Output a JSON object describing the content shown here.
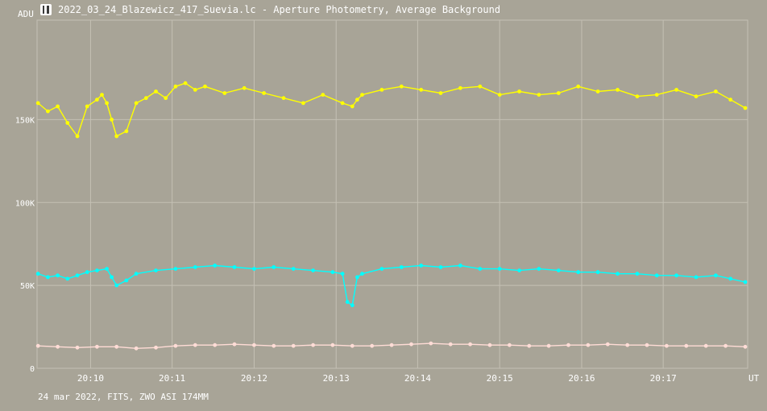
{
  "window": {
    "title": "2022_03_24_Blazewicz_417_Suevia.lc - Aperture Photometry, Average Background"
  },
  "footer": {
    "text": "24 mar 2022, FITS, ZWO ASI 174MM"
  },
  "colors": {
    "background": "#a8a497",
    "grid": "#c4c0b4",
    "text": "#ffffff",
    "series_target": "#ffff00",
    "series_comparison": "#00ffff",
    "series_background": "#ffdcd6"
  },
  "chart_data": {
    "type": "line",
    "xlabel": "UT",
    "ylabel": "ADU",
    "x_unit": "UT time (hours)",
    "xlim": [
      20.1558,
      20.3005
    ],
    "ylim": [
      0,
      210000
    ],
    "y_ticks": [
      0,
      50000,
      100000,
      150000
    ],
    "y_tick_labels": [
      "0",
      "50K",
      "100K",
      "150K"
    ],
    "x_ticks": [
      20.1667,
      20.1833,
      20.2,
      20.2167,
      20.2333,
      20.25,
      20.2667,
      20.2833
    ],
    "x_tick_labels": [
      "20:10",
      "20:11",
      "20:12",
      "20:13",
      "20:14",
      "20:15",
      "20:16",
      "20:17"
    ],
    "grid": true,
    "series": [
      {
        "key": "target",
        "color": "#ffff00",
        "x": [
          20.156,
          20.158,
          20.16,
          20.162,
          20.164,
          20.166,
          20.168,
          20.169,
          20.17,
          20.171,
          20.172,
          20.174,
          20.176,
          20.178,
          20.18,
          20.182,
          20.184,
          20.186,
          20.188,
          20.19,
          20.194,
          20.198,
          20.202,
          20.206,
          20.21,
          20.214,
          20.218,
          20.22,
          20.221,
          20.222,
          20.226,
          20.23,
          20.234,
          20.238,
          20.242,
          20.246,
          20.25,
          20.254,
          20.258,
          20.262,
          20.266,
          20.27,
          20.274,
          20.278,
          20.282,
          20.286,
          20.29,
          20.294,
          20.297,
          20.3
        ],
        "values": [
          160000,
          155000,
          158000,
          148000,
          140000,
          158000,
          162000,
          165000,
          160000,
          150000,
          140000,
          143000,
          160000,
          163000,
          167000,
          163000,
          170000,
          172000,
          168000,
          170000,
          166000,
          169000,
          166000,
          163000,
          160000,
          165000,
          160000,
          158000,
          162000,
          165000,
          168000,
          170000,
          168000,
          166000,
          169000,
          170000,
          165000,
          167000,
          165000,
          166000,
          170000,
          167000,
          168000,
          164000,
          165000,
          168000,
          164000,
          167000,
          162000,
          157000
        ]
      },
      {
        "key": "comparison",
        "color": "#00ffff",
        "x": [
          20.156,
          20.158,
          20.16,
          20.162,
          20.164,
          20.166,
          20.168,
          20.17,
          20.171,
          20.172,
          20.174,
          20.176,
          20.18,
          20.184,
          20.188,
          20.192,
          20.196,
          20.2,
          20.204,
          20.208,
          20.212,
          20.216,
          20.218,
          20.219,
          20.22,
          20.221,
          20.222,
          20.226,
          20.23,
          20.234,
          20.238,
          20.242,
          20.246,
          20.25,
          20.254,
          20.258,
          20.262,
          20.266,
          20.27,
          20.274,
          20.278,
          20.282,
          20.286,
          20.29,
          20.294,
          20.297,
          20.3
        ],
        "values": [
          57000,
          55000,
          56000,
          54000,
          56000,
          58000,
          59000,
          60000,
          55000,
          50000,
          53000,
          57000,
          59000,
          60000,
          61000,
          62000,
          61000,
          60000,
          61000,
          60000,
          59000,
          58000,
          57000,
          40000,
          38000,
          55000,
          57000,
          60000,
          61000,
          62000,
          61000,
          62000,
          60000,
          60000,
          59000,
          60000,
          59000,
          58000,
          58000,
          57000,
          57000,
          56000,
          56000,
          55000,
          56000,
          54000,
          52000
        ]
      },
      {
        "key": "background",
        "color": "#ffdcd6",
        "x": [
          20.156,
          20.16,
          20.164,
          20.168,
          20.172,
          20.176,
          20.18,
          20.184,
          20.188,
          20.192,
          20.196,
          20.2,
          20.204,
          20.208,
          20.212,
          20.216,
          20.22,
          20.224,
          20.228,
          20.232,
          20.236,
          20.24,
          20.244,
          20.248,
          20.252,
          20.256,
          20.26,
          20.264,
          20.268,
          20.272,
          20.276,
          20.28,
          20.284,
          20.288,
          20.292,
          20.296,
          20.3
        ],
        "values": [
          13500,
          13000,
          12500,
          13000,
          13000,
          12000,
          12500,
          13500,
          14000,
          14000,
          14500,
          14000,
          13500,
          13500,
          14000,
          14000,
          13500,
          13500,
          14000,
          14500,
          15000,
          14500,
          14500,
          14000,
          14000,
          13500,
          13500,
          14000,
          14000,
          14500,
          14000,
          14000,
          13500,
          13500,
          13500,
          13500,
          13000
        ]
      }
    ]
  }
}
